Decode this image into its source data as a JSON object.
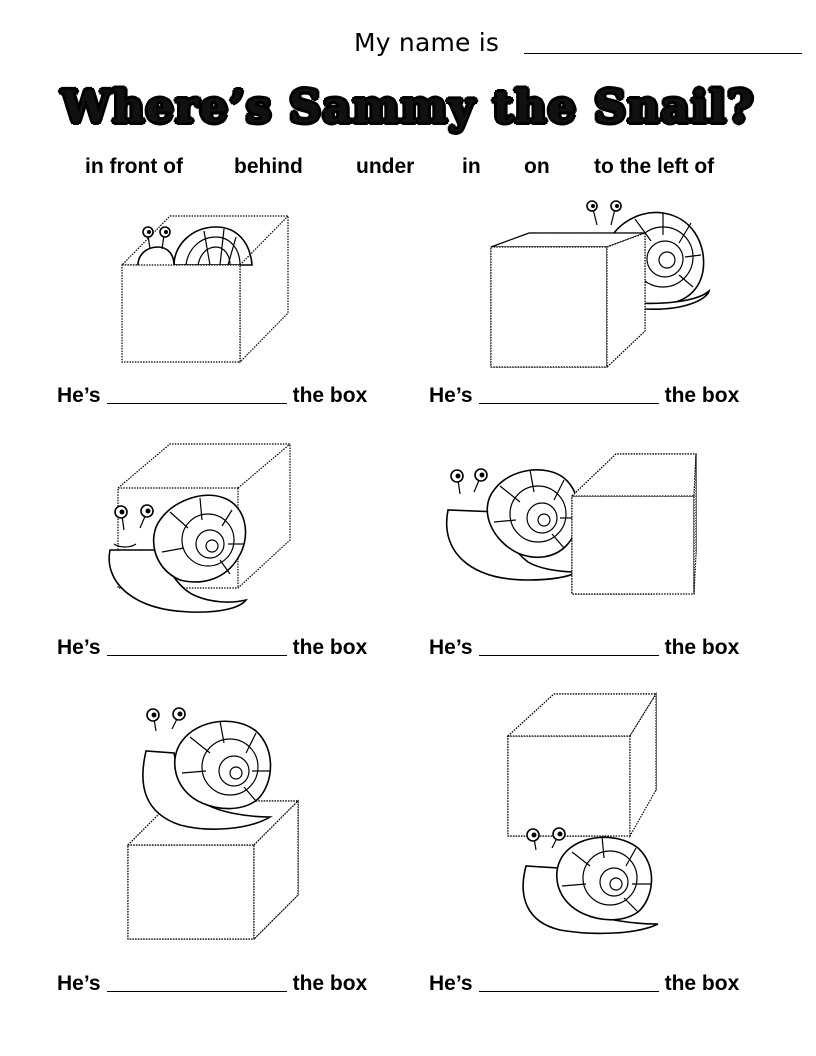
{
  "header": {
    "name_label": "My name is",
    "title": "Where’s Sammy the Snail?"
  },
  "word_bank": [
    "in front of",
    "behind",
    "under",
    "in",
    "on",
    "to the left of"
  ],
  "answers": [
    {
      "prefix": "He’s",
      "suffix": "the box"
    },
    {
      "prefix": "He’s",
      "suffix": "the box"
    },
    {
      "prefix": "He’s",
      "suffix": "the box"
    },
    {
      "prefix": "He’s",
      "suffix": "the box"
    },
    {
      "prefix": "He’s",
      "suffix": "the box"
    },
    {
      "prefix": "He’s",
      "suffix": "the box"
    }
  ]
}
